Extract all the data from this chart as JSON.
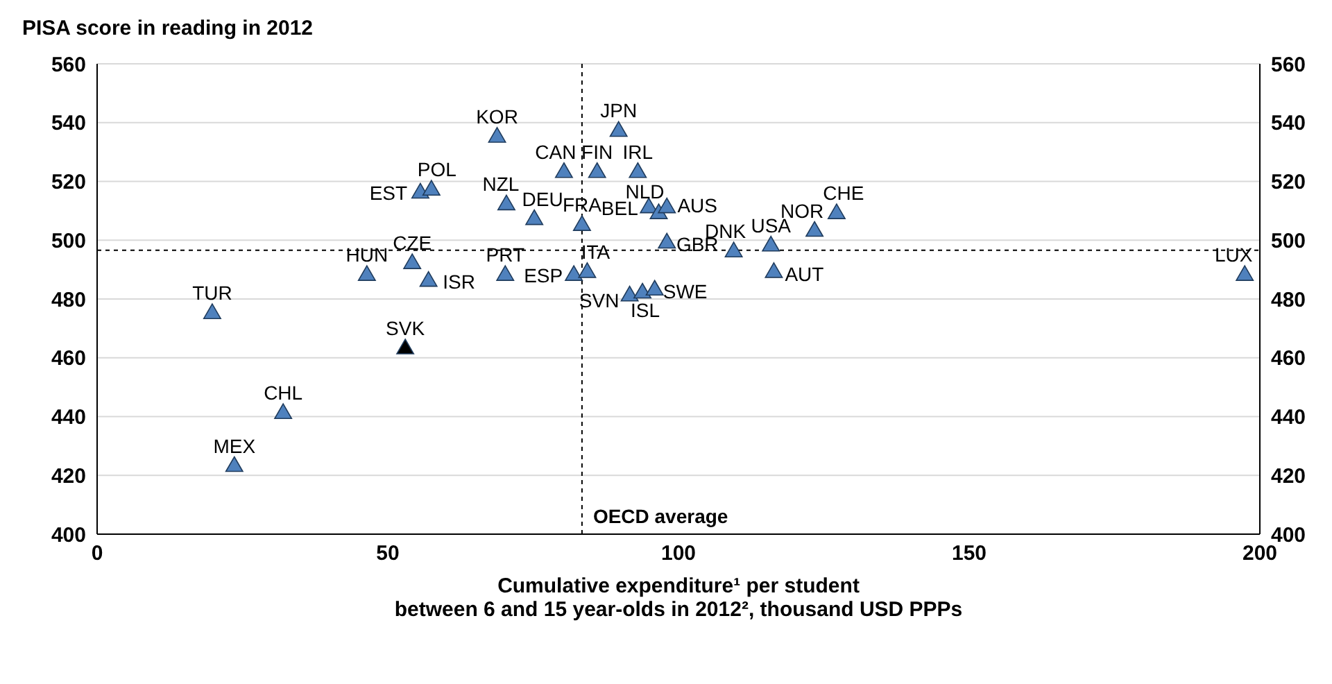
{
  "chart_data": {
    "type": "scatter",
    "title": "PISA score in reading in 2012",
    "xlabel": "Cumulative expenditure¹ per student\nbetween 6 and 15 year-olds in 2012², thousand USD PPPs",
    "series": [
      {
        "name": "TUR",
        "color": "#4f81bd",
        "x": [
          19.8
        ],
        "values": [
          475
        ]
      },
      {
        "name": "MEX",
        "color": "#4f81bd",
        "x": [
          23.6
        ],
        "values": [
          423
        ]
      },
      {
        "name": "CHL",
        "color": "#4f81bd",
        "x": [
          32
        ],
        "values": [
          441
        ]
      },
      {
        "name": "SVK",
        "color": "#000000",
        "x": [
          53
        ],
        "values": [
          463
        ]
      },
      {
        "name": "HUN",
        "color": "#4f81bd",
        "x": [
          46.4
        ],
        "values": [
          488
        ]
      },
      {
        "name": "CZE",
        "color": "#4f81bd",
        "x": [
          54.2
        ],
        "values": [
          492
        ]
      },
      {
        "name": "ISR",
        "color": "#4f81bd",
        "x": [
          57
        ],
        "values": [
          486
        ]
      },
      {
        "name": "PRT",
        "color": "#4f81bd",
        "x": [
          70.2
        ],
        "values": [
          488
        ]
      },
      {
        "name": "KOR",
        "color": "#4f81bd",
        "x": [
          68.8
        ],
        "values": [
          535
        ]
      },
      {
        "name": "JPN",
        "color": "#4f81bd",
        "x": [
          89.7
        ],
        "values": [
          537
        ]
      },
      {
        "name": "CAN",
        "color": "#4f81bd",
        "x": [
          80.3
        ],
        "values": [
          523
        ]
      },
      {
        "name": "FIN",
        "color": "#4f81bd",
        "x": [
          86
        ],
        "values": [
          523
        ]
      },
      {
        "name": "IRL",
        "color": "#4f81bd",
        "x": [
          93
        ],
        "values": [
          523
        ]
      },
      {
        "name": "EST",
        "color": "#4f81bd",
        "x": [
          55.6
        ],
        "values": [
          516
        ]
      },
      {
        "name": "POL",
        "color": "#4f81bd",
        "x": [
          57.5
        ],
        "values": [
          517
        ]
      },
      {
        "name": "NZL",
        "color": "#4f81bd",
        "x": [
          70.4
        ],
        "values": [
          512
        ]
      },
      {
        "name": "DEU",
        "color": "#4f81bd",
        "x": [
          75.2
        ],
        "values": [
          507
        ]
      },
      {
        "name": "FRA",
        "color": "#4f81bd",
        "x": [
          83.4
        ],
        "values": [
          505
        ]
      },
      {
        "name": "BEL",
        "color": "#4f81bd",
        "x": [
          94.9
        ],
        "values": [
          511
        ]
      },
      {
        "name": "NLD",
        "color": "#4f81bd",
        "x": [
          96.6
        ],
        "values": [
          509
        ]
      },
      {
        "name": "AUS",
        "color": "#4f81bd",
        "x": [
          98
        ],
        "values": [
          511
        ]
      },
      {
        "name": "GBR",
        "color": "#4f81bd",
        "x": [
          98
        ],
        "values": [
          499
        ]
      },
      {
        "name": "DNK",
        "color": "#4f81bd",
        "x": [
          109.5
        ],
        "values": [
          496
        ]
      },
      {
        "name": "USA",
        "color": "#4f81bd",
        "x": [
          115.9
        ],
        "values": [
          498
        ]
      },
      {
        "name": "AUT",
        "color": "#4f81bd",
        "x": [
          116.4
        ],
        "values": [
          489
        ]
      },
      {
        "name": "NOR",
        "color": "#4f81bd",
        "x": [
          123.4
        ],
        "values": [
          503
        ]
      },
      {
        "name": "CHE",
        "color": "#4f81bd",
        "x": [
          127.2
        ],
        "values": [
          509
        ]
      },
      {
        "name": "ESP",
        "color": "#4f81bd",
        "x": [
          82
        ],
        "values": [
          488
        ]
      },
      {
        "name": "ITA",
        "color": "#4f81bd",
        "x": [
          84.3
        ],
        "values": [
          489
        ]
      },
      {
        "name": "SVN",
        "color": "#4f81bd",
        "x": [
          91.6
        ],
        "values": [
          481
        ]
      },
      {
        "name": "ISL",
        "color": "#4f81bd",
        "x": [
          93.8
        ],
        "values": [
          482
        ]
      },
      {
        "name": "SWE",
        "color": "#4f81bd",
        "x": [
          95.9
        ],
        "values": [
          483
        ]
      },
      {
        "name": "LUX",
        "color": "#4f81bd",
        "x": [
          197.4
        ],
        "values": [
          488
        ]
      }
    ],
    "marker": "triangle",
    "xlim": [
      0,
      200
    ],
    "xticks": [
      0,
      50,
      100,
      150,
      200
    ],
    "ylim": [
      400,
      560
    ],
    "yticks": [
      400,
      420,
      440,
      460,
      480,
      500,
      520,
      540,
      560
    ],
    "y2lim": [
      400,
      560
    ],
    "y2ticks": [
      400,
      420,
      440,
      460,
      480,
      500,
      520,
      540,
      560
    ],
    "grid": "y",
    "ref_lines": [
      {
        "axis": "x",
        "value": 83.4,
        "label": "OECD average",
        "line_style": "dashed"
      },
      {
        "axis": "y",
        "value": 496.6,
        "label": null,
        "line_style": "dashed"
      }
    ]
  }
}
